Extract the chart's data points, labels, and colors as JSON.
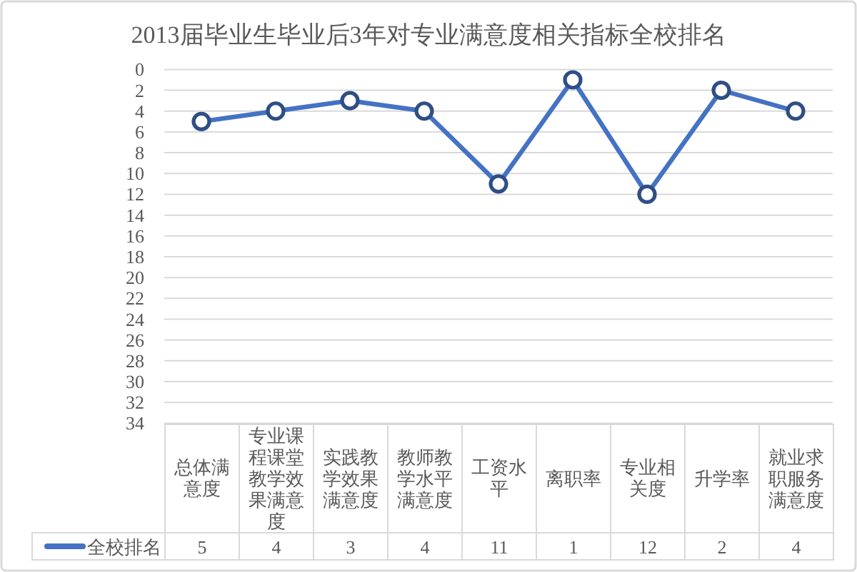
{
  "chart_data": {
    "type": "line",
    "title": "2013届毕业生毕业后3年对专业满意度相关指标全校排名",
    "categories": [
      "总体满意度",
      "专业课程课堂教学效果满意度",
      "实践教学效果满意度",
      "教师教学水平满意度",
      "工资水平",
      "离职率",
      "专业相关度",
      "升学率",
      "就业求职服务满意度"
    ],
    "series": [
      {
        "name": "全校排名",
        "color": "#4472c4",
        "values": [
          5,
          4,
          3,
          4,
          11,
          1,
          12,
          2,
          4
        ]
      }
    ],
    "ylim": [
      34,
      0
    ],
    "yticks": [
      0,
      2,
      4,
      6,
      8,
      10,
      12,
      14,
      16,
      18,
      20,
      22,
      24,
      26,
      28,
      30,
      32,
      34
    ],
    "grid": "y",
    "legend": "bottom left",
    "marker": "circle",
    "line_style": "solid",
    "data_labels": true
  }
}
